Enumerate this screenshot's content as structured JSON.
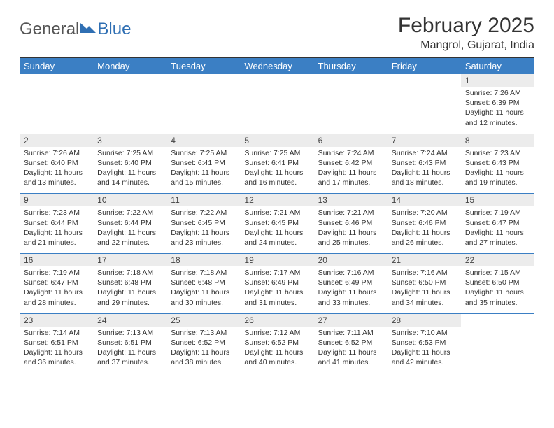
{
  "brand": {
    "word1": "General",
    "word2": "Blue",
    "color_word1": "#555555",
    "color_word2": "#2f6fb3"
  },
  "title": "February 2025",
  "location": "Mangrol, Gujarat, India",
  "colors": {
    "header_bg": "#3b7fc4",
    "header_text": "#ffffff",
    "daynum_bg": "#ececec",
    "daynum_text": "#444444",
    "body_text": "#333333",
    "rule": "#3b7fc4"
  },
  "typography": {
    "title_fontsize": 30,
    "location_fontsize": 16,
    "dayhead_fontsize": 13,
    "daynum_fontsize": 12,
    "dayinfo_fontsize": 10.5
  },
  "day_headers": [
    "Sunday",
    "Monday",
    "Tuesday",
    "Wednesday",
    "Thursday",
    "Friday",
    "Saturday"
  ],
  "weeks": [
    [
      null,
      null,
      null,
      null,
      null,
      null,
      {
        "n": "1",
        "sr": "Sunrise: 7:26 AM",
        "ss": "Sunset: 6:39 PM",
        "d1": "Daylight: 11 hours",
        "d2": "and 12 minutes."
      }
    ],
    [
      {
        "n": "2",
        "sr": "Sunrise: 7:26 AM",
        "ss": "Sunset: 6:40 PM",
        "d1": "Daylight: 11 hours",
        "d2": "and 13 minutes."
      },
      {
        "n": "3",
        "sr": "Sunrise: 7:25 AM",
        "ss": "Sunset: 6:40 PM",
        "d1": "Daylight: 11 hours",
        "d2": "and 14 minutes."
      },
      {
        "n": "4",
        "sr": "Sunrise: 7:25 AM",
        "ss": "Sunset: 6:41 PM",
        "d1": "Daylight: 11 hours",
        "d2": "and 15 minutes."
      },
      {
        "n": "5",
        "sr": "Sunrise: 7:25 AM",
        "ss": "Sunset: 6:41 PM",
        "d1": "Daylight: 11 hours",
        "d2": "and 16 minutes."
      },
      {
        "n": "6",
        "sr": "Sunrise: 7:24 AM",
        "ss": "Sunset: 6:42 PM",
        "d1": "Daylight: 11 hours",
        "d2": "and 17 minutes."
      },
      {
        "n": "7",
        "sr": "Sunrise: 7:24 AM",
        "ss": "Sunset: 6:43 PM",
        "d1": "Daylight: 11 hours",
        "d2": "and 18 minutes."
      },
      {
        "n": "8",
        "sr": "Sunrise: 7:23 AM",
        "ss": "Sunset: 6:43 PM",
        "d1": "Daylight: 11 hours",
        "d2": "and 19 minutes."
      }
    ],
    [
      {
        "n": "9",
        "sr": "Sunrise: 7:23 AM",
        "ss": "Sunset: 6:44 PM",
        "d1": "Daylight: 11 hours",
        "d2": "and 21 minutes."
      },
      {
        "n": "10",
        "sr": "Sunrise: 7:22 AM",
        "ss": "Sunset: 6:44 PM",
        "d1": "Daylight: 11 hours",
        "d2": "and 22 minutes."
      },
      {
        "n": "11",
        "sr": "Sunrise: 7:22 AM",
        "ss": "Sunset: 6:45 PM",
        "d1": "Daylight: 11 hours",
        "d2": "and 23 minutes."
      },
      {
        "n": "12",
        "sr": "Sunrise: 7:21 AM",
        "ss": "Sunset: 6:45 PM",
        "d1": "Daylight: 11 hours",
        "d2": "and 24 minutes."
      },
      {
        "n": "13",
        "sr": "Sunrise: 7:21 AM",
        "ss": "Sunset: 6:46 PM",
        "d1": "Daylight: 11 hours",
        "d2": "and 25 minutes."
      },
      {
        "n": "14",
        "sr": "Sunrise: 7:20 AM",
        "ss": "Sunset: 6:46 PM",
        "d1": "Daylight: 11 hours",
        "d2": "and 26 minutes."
      },
      {
        "n": "15",
        "sr": "Sunrise: 7:19 AM",
        "ss": "Sunset: 6:47 PM",
        "d1": "Daylight: 11 hours",
        "d2": "and 27 minutes."
      }
    ],
    [
      {
        "n": "16",
        "sr": "Sunrise: 7:19 AM",
        "ss": "Sunset: 6:47 PM",
        "d1": "Daylight: 11 hours",
        "d2": "and 28 minutes."
      },
      {
        "n": "17",
        "sr": "Sunrise: 7:18 AM",
        "ss": "Sunset: 6:48 PM",
        "d1": "Daylight: 11 hours",
        "d2": "and 29 minutes."
      },
      {
        "n": "18",
        "sr": "Sunrise: 7:18 AM",
        "ss": "Sunset: 6:48 PM",
        "d1": "Daylight: 11 hours",
        "d2": "and 30 minutes."
      },
      {
        "n": "19",
        "sr": "Sunrise: 7:17 AM",
        "ss": "Sunset: 6:49 PM",
        "d1": "Daylight: 11 hours",
        "d2": "and 31 minutes."
      },
      {
        "n": "20",
        "sr": "Sunrise: 7:16 AM",
        "ss": "Sunset: 6:49 PM",
        "d1": "Daylight: 11 hours",
        "d2": "and 33 minutes."
      },
      {
        "n": "21",
        "sr": "Sunrise: 7:16 AM",
        "ss": "Sunset: 6:50 PM",
        "d1": "Daylight: 11 hours",
        "d2": "and 34 minutes."
      },
      {
        "n": "22",
        "sr": "Sunrise: 7:15 AM",
        "ss": "Sunset: 6:50 PM",
        "d1": "Daylight: 11 hours",
        "d2": "and 35 minutes."
      }
    ],
    [
      {
        "n": "23",
        "sr": "Sunrise: 7:14 AM",
        "ss": "Sunset: 6:51 PM",
        "d1": "Daylight: 11 hours",
        "d2": "and 36 minutes."
      },
      {
        "n": "24",
        "sr": "Sunrise: 7:13 AM",
        "ss": "Sunset: 6:51 PM",
        "d1": "Daylight: 11 hours",
        "d2": "and 37 minutes."
      },
      {
        "n": "25",
        "sr": "Sunrise: 7:13 AM",
        "ss": "Sunset: 6:52 PM",
        "d1": "Daylight: 11 hours",
        "d2": "and 38 minutes."
      },
      {
        "n": "26",
        "sr": "Sunrise: 7:12 AM",
        "ss": "Sunset: 6:52 PM",
        "d1": "Daylight: 11 hours",
        "d2": "and 40 minutes."
      },
      {
        "n": "27",
        "sr": "Sunrise: 7:11 AM",
        "ss": "Sunset: 6:52 PM",
        "d1": "Daylight: 11 hours",
        "d2": "and 41 minutes."
      },
      {
        "n": "28",
        "sr": "Sunrise: 7:10 AM",
        "ss": "Sunset: 6:53 PM",
        "d1": "Daylight: 11 hours",
        "d2": "and 42 minutes."
      },
      null
    ]
  ]
}
